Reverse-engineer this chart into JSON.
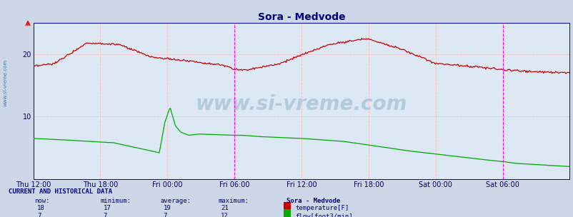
{
  "title": "Sora - Medvode",
  "title_color": "#000080",
  "title_fontsize": 10,
  "bg_color": "#ccd8e8",
  "plot_bg_color": "#dce8f4",
  "line_color_temp": "#cc0000",
  "line_color_flow": "#00aa00",
  "x_tick_labels": [
    "Thu 12:00",
    "Thu 18:00",
    "Fri 00:00",
    "Fri 06:00",
    "Fri 12:00",
    "Fri 18:00",
    "Sat 00:00",
    "Sat 06:00"
  ],
  "ylim_max": 25,
  "ytick_vals": [
    10,
    20
  ],
  "watermark": "www.si-vreme.com",
  "sidebar_text": "www.si-vreme.com",
  "footer_bg": "#ccd8e8",
  "footer_title": "CURRENT AND HISTORICAL DATA",
  "footer_col_headers": [
    "now:",
    "minimum:",
    "average:",
    "maximum:",
    "Sora - Medvode"
  ],
  "temp_vals": [
    "18",
    "17",
    "19",
    "21"
  ],
  "flow_vals": [
    "7",
    "7",
    "7",
    "12"
  ],
  "temp_label": "temperature[F]",
  "flow_label": "flow[foot3/min]"
}
